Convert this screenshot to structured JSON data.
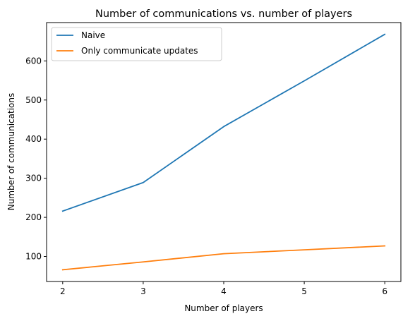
{
  "chart_data": {
    "type": "line",
    "title": "Number of communications vs. number of players",
    "xlabel": "Number of players",
    "ylabel": "Number of communications",
    "x": [
      2,
      3,
      4,
      5,
      6
    ],
    "xticks": [
      "2",
      "3",
      "4",
      "5",
      "6"
    ],
    "yticks": [
      "100",
      "200",
      "300",
      "400",
      "500",
      "600"
    ],
    "xlim": [
      1.8,
      6.2
    ],
    "ylim": [
      36,
      698
    ],
    "grid": false,
    "legend_position": "top-left",
    "series": [
      {
        "name": "Naive",
        "color": "#1f77b4",
        "values": [
          216,
          289,
          432,
          549,
          668
        ]
      },
      {
        "name": "Only communicate updates",
        "color": "#ff7f0e",
        "values": [
          66,
          86,
          107,
          117,
          127
        ]
      }
    ]
  }
}
